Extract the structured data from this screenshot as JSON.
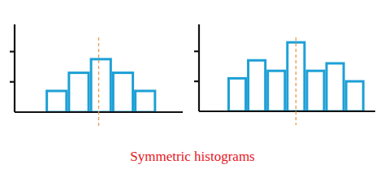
{
  "chart_data": [
    {
      "type": "histogram",
      "bins": [
        1.4,
        2.4,
        3.4,
        4.4,
        5.4,
        6.4
      ],
      "values": [
        0.7,
        1.3,
        1.75,
        1.3,
        0.7
      ],
      "color": "#1ea0d6",
      "xlim": [
        0,
        7.6
      ],
      "ylim": [
        0,
        2.9
      ],
      "yticks": [
        1,
        2
      ],
      "tick_labels": false,
      "center_line": 3.8
    },
    {
      "type": "histogram",
      "bins": [
        1.45,
        2.45,
        3.45,
        4.45,
        5.45,
        6.45,
        7.45,
        8.45
      ],
      "values": [
        1.1,
        1.7,
        1.35,
        2.3,
        1.35,
        1.6,
        1.0
      ],
      "color": "#1ea0d6",
      "xlim": [
        0,
        9
      ],
      "ylim": [
        0,
        2.9
      ],
      "yticks": [
        1,
        2
      ],
      "tick_labels": false,
      "center_line": 4.95
    }
  ],
  "caption": "Symmetric histograms"
}
